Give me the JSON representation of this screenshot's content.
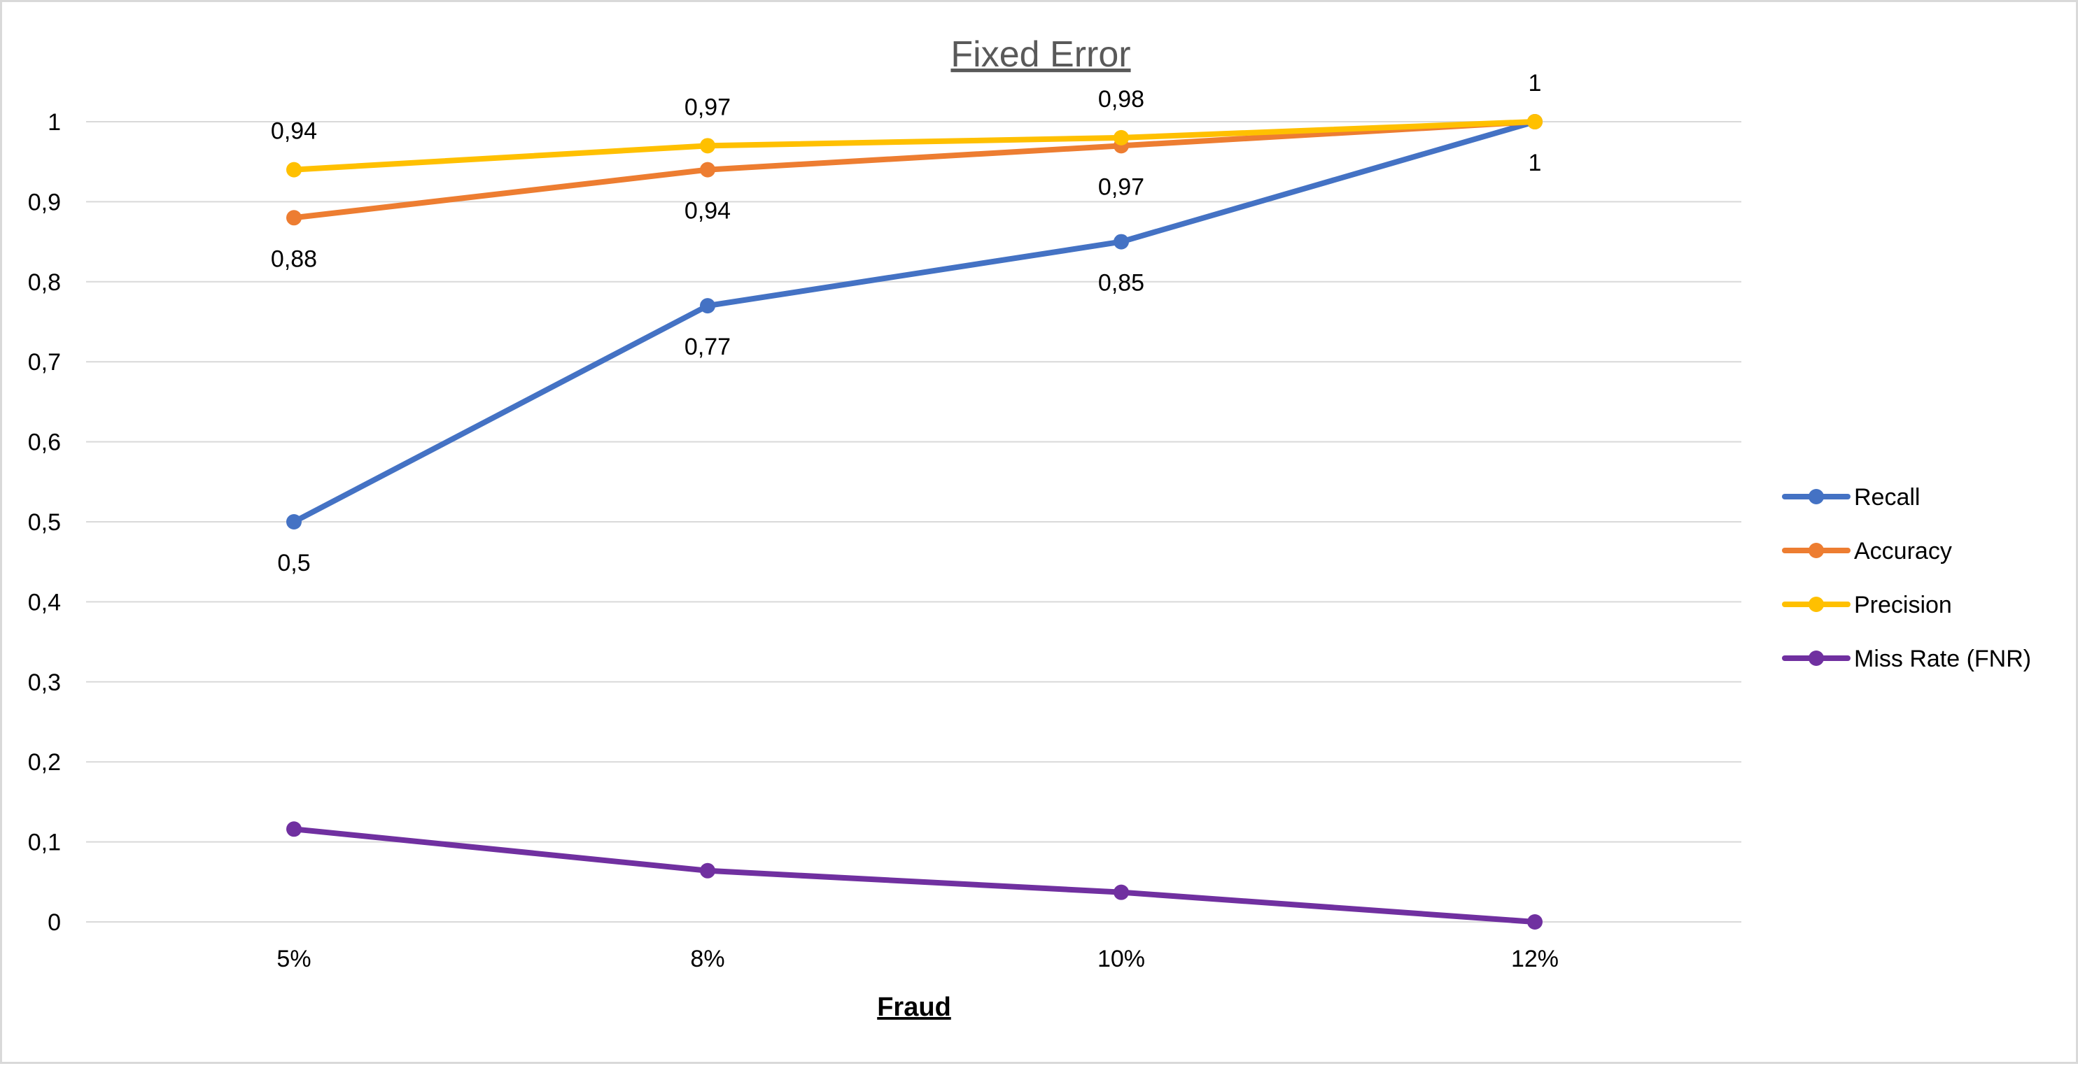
{
  "chart_data": {
    "type": "line",
    "title": "Fixed Error",
    "xlabel": "Fraud",
    "ylabel": "",
    "categories": [
      "5%",
      "8%",
      "10%",
      "12%"
    ],
    "ylim": [
      0,
      1
    ],
    "yticks": [
      0,
      0.1,
      0.2,
      0.3,
      0.4,
      0.5,
      0.6,
      0.7,
      0.8,
      0.9,
      1
    ],
    "ytick_labels": [
      "0",
      "0,1",
      "0,2",
      "0,3",
      "0,4",
      "0,5",
      "0,6",
      "0,7",
      "0,8",
      "0,9",
      "1"
    ],
    "grid": true,
    "legend": "right",
    "series": [
      {
        "name": "Recall",
        "color": "#4472c4",
        "values": [
          0.5,
          0.77,
          0.85,
          1.0
        ],
        "labels": [
          "0,5",
          "0,77",
          "0,85",
          "1"
        ],
        "label_position": "below",
        "show_label": [
          true,
          true,
          true,
          true
        ]
      },
      {
        "name": "Accuracy",
        "color": "#ed7d31",
        "values": [
          0.88,
          0.94,
          0.97,
          1.0
        ],
        "labels": [
          "0,88",
          "0,94",
          "0,97",
          "1"
        ],
        "label_position": "below",
        "show_label": [
          true,
          true,
          true,
          false
        ]
      },
      {
        "name": "Precision",
        "color": "#ffc000",
        "values": [
          0.94,
          0.97,
          0.98,
          1.0
        ],
        "labels": [
          "0,94",
          "0,97",
          "0,98",
          "1"
        ],
        "label_position": "above",
        "show_label": [
          true,
          true,
          true,
          true
        ]
      },
      {
        "name": "Miss Rate (FNR)",
        "color": "#7030a0",
        "values": [
          0.116,
          0.064,
          0.037,
          0.0
        ],
        "labels": [],
        "label_position": "none",
        "show_label": [
          false,
          false,
          false,
          false
        ]
      }
    ]
  }
}
